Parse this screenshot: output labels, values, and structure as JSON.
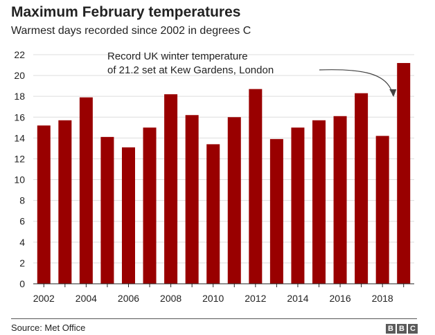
{
  "title": "Maximum February temperatures",
  "subtitle": "Warmest days recorded since 2002 in degrees C",
  "source": "Source: Met Office",
  "logo": [
    "B",
    "B",
    "C"
  ],
  "colors": {
    "bar": "#990000",
    "grid": "#dddddd",
    "axis": "#222222",
    "text": "#222222"
  },
  "chart_data": {
    "type": "bar",
    "title": "Maximum February temperatures",
    "subtitle": "Warmest days recorded since 2002 in degrees C",
    "categories": [
      "2002",
      "2003",
      "2004",
      "2005",
      "2006",
      "2007",
      "2008",
      "2009",
      "2010",
      "2011",
      "2012",
      "2013",
      "2014",
      "2015",
      "2016",
      "2017",
      "2018",
      "2019"
    ],
    "x_tick_labels": [
      "2002",
      "2004",
      "2006",
      "2008",
      "2010",
      "2012",
      "2014",
      "2016",
      "2018"
    ],
    "values": [
      15.2,
      15.7,
      17.9,
      14.1,
      13.1,
      15.0,
      18.2,
      16.2,
      13.4,
      16.0,
      18.7,
      13.9,
      15.0,
      15.7,
      16.1,
      18.3,
      14.2,
      21.2
    ],
    "ylim": [
      0,
      22
    ],
    "y_ticks": [
      0,
      2,
      4,
      6,
      8,
      10,
      12,
      14,
      16,
      18,
      20,
      22
    ],
    "grid": true,
    "annotation": {
      "lines": [
        "Record UK winter temperature",
        "of 21.2 set at Kew Gardens, London"
      ],
      "target_category": "2019"
    }
  }
}
